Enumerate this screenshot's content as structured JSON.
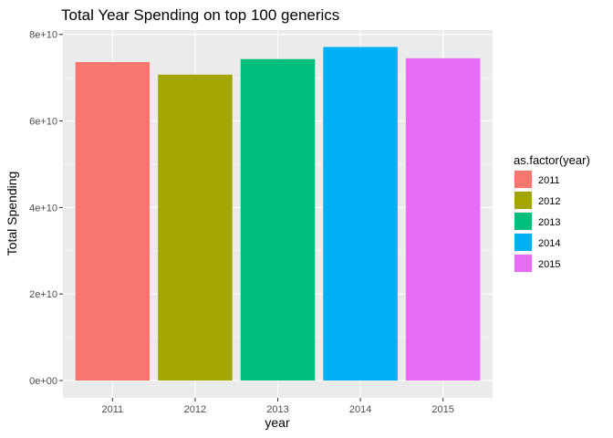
{
  "chart_data": {
    "type": "bar",
    "title": "Total Year Spending on top 100 generics",
    "xlabel": "year",
    "ylabel": "Total Spending",
    "categories": [
      "2011",
      "2012",
      "2013",
      "2014",
      "2015"
    ],
    "values": [
      73600000000,
      70700000000,
      74300000000,
      77100000000,
      74500000000
    ],
    "colors": [
      "#F8766D",
      "#A3A500",
      "#00BF7D",
      "#00B0F6",
      "#E76BF3"
    ],
    "ylim": [
      -4000000000,
      81000000000
    ],
    "yticks": [
      0,
      20000000000,
      40000000000,
      60000000000,
      80000000000
    ],
    "ytick_labels": [
      "0e+00",
      "2e+10",
      "4e+10",
      "6e+10",
      "8e+10"
    ],
    "grid": true,
    "panel_background": "#EBEBEB",
    "legend": {
      "title": "as.factor(year)",
      "placement": "right",
      "entries": [
        "2011",
        "2012",
        "2013",
        "2014",
        "2015"
      ]
    }
  }
}
